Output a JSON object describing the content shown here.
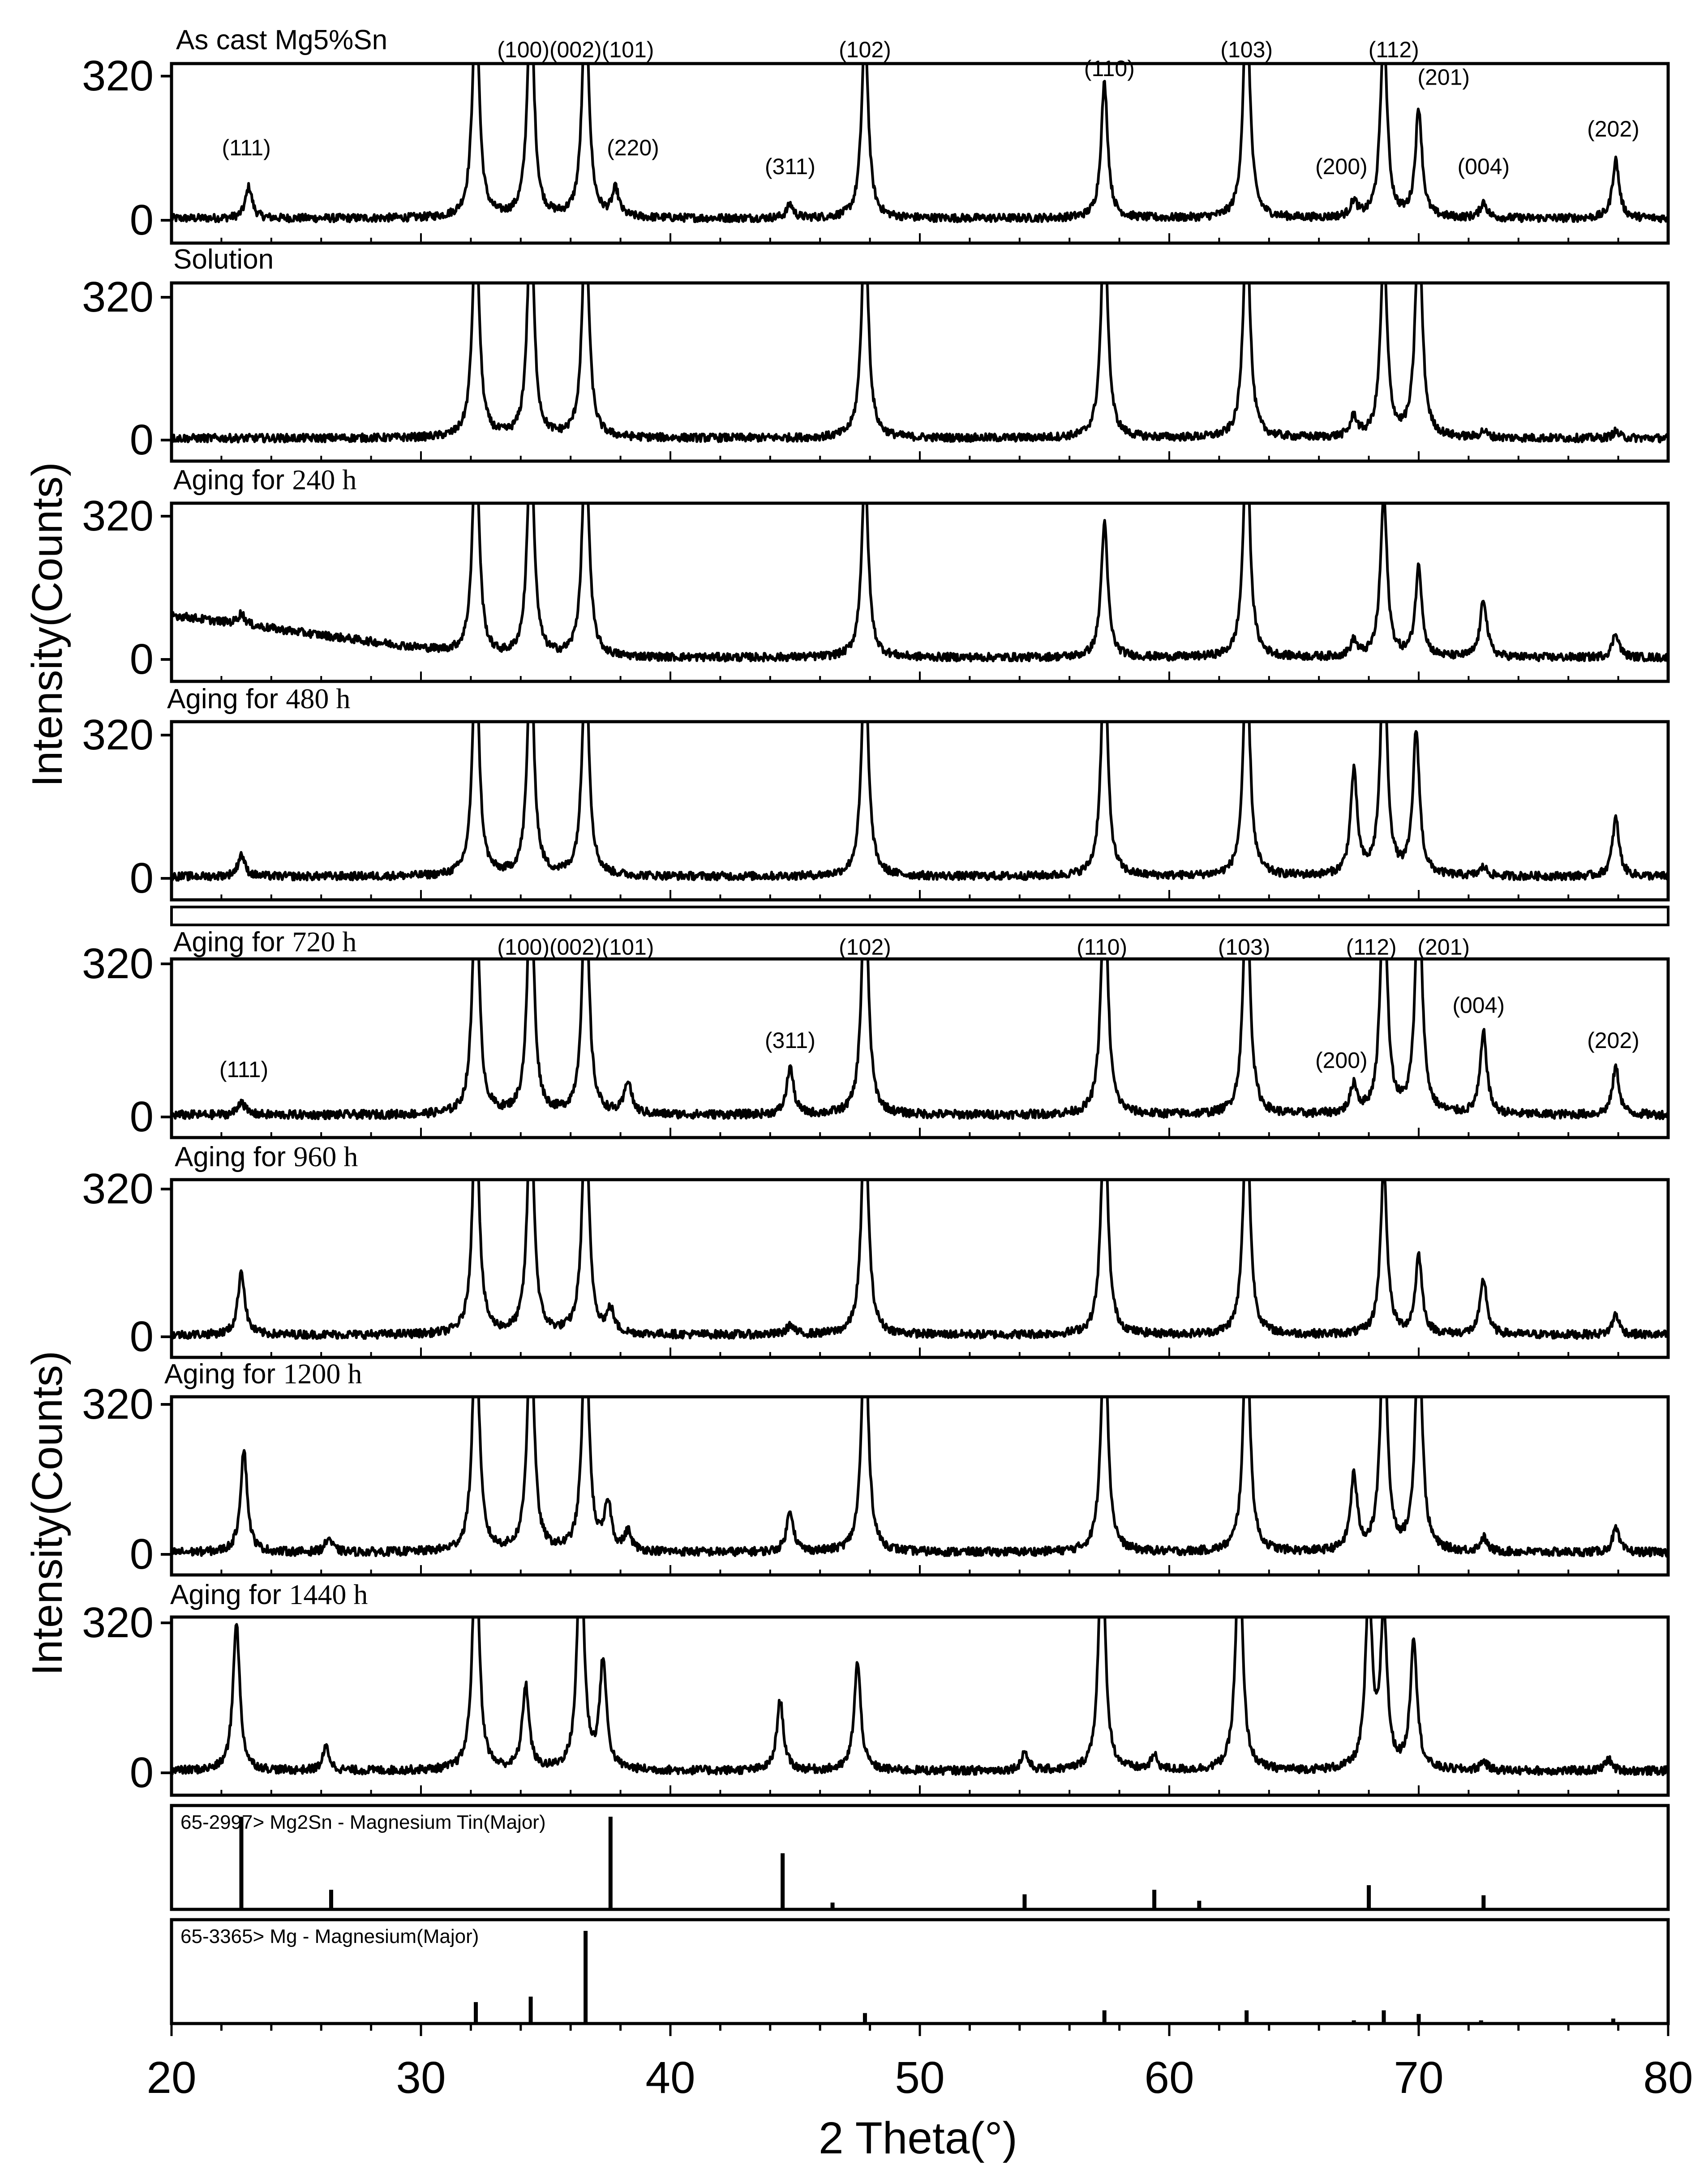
{
  "figure": {
    "y_axis_label_top": "Intensity(Counts)",
    "y_axis_label_bottom": "Intensity(Counts)",
    "x_axis_label": "2 Theta(°)"
  },
  "chart_data": {
    "type": "line",
    "x_ticks": [
      20,
      30,
      40,
      50,
      60,
      70,
      80
    ],
    "x_range": [
      20,
      80
    ],
    "y_range": [
      0,
      320
    ],
    "y_ticks": [
      0,
      320
    ],
    "panels": [
      {
        "label_prefix": "As cast Mg5%Sn",
        "label_suffix": "",
        "peaks": [
          [
            23.1,
            70
          ],
          [
            32.2,
            500
          ],
          [
            34.4,
            500
          ],
          [
            36.6,
            500
          ],
          [
            37.8,
            60
          ],
          [
            44.8,
            30
          ],
          [
            47.8,
            420
          ],
          [
            57.4,
            300
          ],
          [
            63.1,
            500
          ],
          [
            67.4,
            35
          ],
          [
            68.6,
            420
          ],
          [
            70.0,
            240
          ],
          [
            72.6,
            35
          ],
          [
            77.9,
            130
          ]
        ],
        "annotations": [
          {
            "text": "(100)(002)(101)",
            "x": 36.2,
            "level": 1.13
          },
          {
            "text": "(102)",
            "x": 47.8,
            "level": 1.13
          },
          {
            "text": "(110)",
            "x": 57.6,
            "level": 1.0
          },
          {
            "text": "(103)",
            "x": 63.1,
            "level": 1.13
          },
          {
            "text": "(112)",
            "x": 69.0,
            "level": 1.13
          },
          {
            "text": "(201)",
            "x": 71.0,
            "level": 0.94
          },
          {
            "text": "(111)",
            "x": 23.0,
            "level": 0.45
          },
          {
            "text": "(220)",
            "x": 38.5,
            "level": 0.45
          },
          {
            "text": "(311)",
            "x": 44.8,
            "level": 0.32
          },
          {
            "text": "(200)",
            "x": 66.9,
            "level": 0.32
          },
          {
            "text": "(004)",
            "x": 72.6,
            "level": 0.32
          },
          {
            "text": "(202)",
            "x": 77.8,
            "level": 0.58
          }
        ]
      },
      {
        "label_prefix": "Solution",
        "label_suffix": "",
        "peaks": [
          [
            32.2,
            500
          ],
          [
            34.4,
            500
          ],
          [
            36.6,
            500
          ],
          [
            47.8,
            500
          ],
          [
            57.4,
            500
          ],
          [
            63.1,
            500
          ],
          [
            67.4,
            45
          ],
          [
            68.6,
            420
          ],
          [
            70.0,
            500
          ],
          [
            72.6,
            15
          ],
          [
            77.9,
            15
          ]
        ],
        "annotations": []
      },
      {
        "label_prefix": "Aging for ",
        "label_suffix": "240 h",
        "peaks": [
          [
            22.8,
            25
          ],
          [
            32.2,
            500
          ],
          [
            34.4,
            500
          ],
          [
            36.6,
            500
          ],
          [
            47.8,
            420
          ],
          [
            57.4,
            300
          ],
          [
            63.1,
            500
          ],
          [
            67.4,
            35
          ],
          [
            68.6,
            360
          ],
          [
            70.0,
            200
          ],
          [
            72.6,
            130
          ],
          [
            77.9,
            55
          ]
        ],
        "annotations": []
      },
      {
        "label_prefix": "Aging for ",
        "label_suffix": "480 h",
        "peaks": [
          [
            22.8,
            50
          ],
          [
            32.2,
            500
          ],
          [
            34.4,
            500
          ],
          [
            36.6,
            500
          ],
          [
            47.8,
            500
          ],
          [
            57.4,
            500
          ],
          [
            63.1,
            500
          ],
          [
            67.4,
            230
          ],
          [
            68.6,
            500
          ],
          [
            69.9,
            320
          ],
          [
            72.6,
            20
          ],
          [
            77.9,
            130
          ]
        ],
        "annotations": []
      },
      {
        "label_prefix": "Aging for ",
        "label_suffix": "720 h",
        "peaks": [
          [
            22.8,
            30
          ],
          [
            32.2,
            500
          ],
          [
            34.4,
            500
          ],
          [
            36.6,
            500
          ],
          [
            38.3,
            70
          ],
          [
            44.8,
            100
          ],
          [
            47.8,
            500
          ],
          [
            57.4,
            500
          ],
          [
            63.1,
            500
          ],
          [
            67.4,
            60
          ],
          [
            68.6,
            500
          ],
          [
            70.0,
            500
          ],
          [
            72.6,
            170
          ],
          [
            77.9,
            100
          ]
        ],
        "annotations": [
          {
            "text": "(100)(002)(101)",
            "x": 36.2,
            "level": 1.06
          },
          {
            "text": "(102)",
            "x": 47.8,
            "level": 1.06
          },
          {
            "text": "(110)",
            "x": 57.3,
            "level": 1.06
          },
          {
            "text": "(103)",
            "x": 63.0,
            "level": 1.06
          },
          {
            "text": "(112)",
            "x": 68.1,
            "level": 1.06
          },
          {
            "text": "(201)",
            "x": 71.0,
            "level": 1.06
          },
          {
            "text": "(004)",
            "x": 72.4,
            "level": 0.68
          },
          {
            "text": "(202)",
            "x": 77.8,
            "level": 0.45
          },
          {
            "text": "(311)",
            "x": 44.8,
            "level": 0.45
          },
          {
            "text": "(200)",
            "x": 66.9,
            "level": 0.32
          },
          {
            "text": "(111)",
            "x": 22.9,
            "level": 0.26
          }
        ]
      },
      {
        "label_prefix": "Aging for ",
        "label_suffix": "960 h",
        "peaks": [
          [
            22.8,
            140
          ],
          [
            32.2,
            500
          ],
          [
            34.4,
            500
          ],
          [
            36.6,
            500
          ],
          [
            37.6,
            50
          ],
          [
            44.8,
            20
          ],
          [
            47.8,
            500
          ],
          [
            57.4,
            500
          ],
          [
            63.1,
            500
          ],
          [
            68.6,
            360
          ],
          [
            70.0,
            170
          ],
          [
            72.6,
            120
          ],
          [
            77.9,
            45
          ]
        ],
        "annotations": []
      },
      {
        "label_prefix": "Aging for ",
        "label_suffix": "1200 h",
        "peaks": [
          [
            22.9,
            220
          ],
          [
            26.3,
            30
          ],
          [
            32.2,
            500
          ],
          [
            34.4,
            500
          ],
          [
            36.6,
            500
          ],
          [
            37.5,
            100
          ],
          [
            38.3,
            40
          ],
          [
            44.8,
            90
          ],
          [
            47.8,
            500
          ],
          [
            57.4,
            500
          ],
          [
            63.1,
            500
          ],
          [
            67.4,
            160
          ],
          [
            68.6,
            500
          ],
          [
            70.0,
            500
          ],
          [
            72.6,
            30
          ],
          [
            77.9,
            50
          ]
        ],
        "annotations": []
      },
      {
        "label_prefix": "Aging for ",
        "label_suffix": "1440 h",
        "peaks": [
          [
            22.6,
            320
          ],
          [
            26.2,
            50
          ],
          [
            32.2,
            500
          ],
          [
            34.2,
            180
          ],
          [
            36.4,
            500
          ],
          [
            37.3,
            230
          ],
          [
            44.4,
            150
          ],
          [
            47.5,
            230
          ],
          [
            54.2,
            40
          ],
          [
            57.3,
            500
          ],
          [
            59.4,
            30
          ],
          [
            62.8,
            500
          ],
          [
            68.0,
            380
          ],
          [
            68.6,
            330
          ],
          [
            69.8,
            280
          ],
          [
            72.6,
            20
          ],
          [
            77.6,
            25
          ]
        ],
        "annotations": []
      }
    ],
    "reference_patterns": [
      {
        "label": "65-2997> Mg2Sn - Magnesium Tin(Major)",
        "lines": [
          [
            22.8,
            1.0
          ],
          [
            26.4,
            0.2
          ],
          [
            37.6,
            1.0
          ],
          [
            44.5,
            0.6
          ],
          [
            46.5,
            0.06
          ],
          [
            54.2,
            0.15
          ],
          [
            59.4,
            0.2
          ],
          [
            61.2,
            0.08
          ],
          [
            68.0,
            0.25
          ],
          [
            72.6,
            0.14
          ]
        ]
      },
      {
        "label": "65-3365> Mg - Magnesium(Major)",
        "lines": [
          [
            32.2,
            0.22
          ],
          [
            34.4,
            0.28
          ],
          [
            36.6,
            1.0
          ],
          [
            47.8,
            0.1
          ],
          [
            57.4,
            0.13
          ],
          [
            63.1,
            0.13
          ],
          [
            67.4,
            0.02
          ],
          [
            68.6,
            0.13
          ],
          [
            70.0,
            0.09
          ],
          [
            72.5,
            0.02
          ],
          [
            77.8,
            0.04
          ]
        ]
      }
    ]
  }
}
